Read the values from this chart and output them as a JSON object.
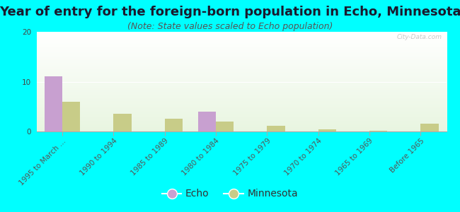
{
  "title": "Year of entry for the foreign-born population in Echo, Minnesota",
  "subtitle": "(Note: State values scaled to Echo population)",
  "categories": [
    "1995 to March ...",
    "1990 to 1994",
    "1985 to 1989",
    "1980 to 1984",
    "1975 to 1979",
    "1970 to 1974",
    "1965 to 1969",
    "Before 1965"
  ],
  "echo_values": [
    11,
    0,
    0,
    4,
    0,
    0,
    0,
    0
  ],
  "minnesota_values": [
    6,
    3.5,
    2.5,
    2,
    1.2,
    0.4,
    0.1,
    1.5
  ],
  "echo_color": "#c8a0d0",
  "minnesota_color": "#c8cc88",
  "background_color": "#00ffff",
  "plot_bg_top": "#e8f5e0",
  "plot_bg_bottom": "#ffffff",
  "ylim": [
    0,
    20
  ],
  "yticks": [
    0,
    10,
    20
  ],
  "bar_width": 0.35,
  "title_fontsize": 13,
  "subtitle_fontsize": 9,
  "tick_fontsize": 7.5,
  "legend_fontsize": 10,
  "watermark": "City-Data.com"
}
